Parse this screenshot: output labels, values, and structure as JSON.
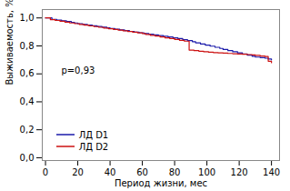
{
  "chart_data": {
    "type": "step",
    "xlabel": "Период жизни, мес",
    "ylabel": "Выживаемость, %",
    "annotations": [
      "p=0,93"
    ],
    "legend": "lower left",
    "grid": false,
    "xlim": [
      -2,
      145
    ],
    "ylim": [
      -0.02,
      1.06
    ],
    "xticks": [
      0,
      20,
      40,
      60,
      80,
      100,
      120,
      140
    ],
    "yticks": [
      {
        "value": 0.0,
        "label": "0,0"
      },
      {
        "value": 0.2,
        "label": "0,2"
      },
      {
        "value": 0.4,
        "label": "0,4"
      },
      {
        "value": 0.6,
        "label": "0,6"
      },
      {
        "value": 0.8,
        "label": "0,8"
      },
      {
        "value": 1.0,
        "label": "1,0"
      }
    ],
    "series": [
      {
        "name": "ЛД D1",
        "color": "#1a1aaa",
        "x": [
          0,
          4,
          7,
          10,
          13,
          16,
          18,
          20,
          23,
          26,
          29,
          32,
          35,
          38,
          40,
          43,
          46,
          49,
          52,
          55,
          58,
          61,
          64,
          67,
          70,
          73,
          76,
          79,
          82,
          85,
          88,
          91,
          93,
          96,
          99,
          102,
          105,
          108,
          110,
          113,
          116,
          119,
          122,
          125,
          128,
          130,
          133,
          136,
          138,
          140
        ],
        "values": [
          1.0,
          0.99,
          0.985,
          0.979,
          0.974,
          0.969,
          0.964,
          0.959,
          0.954,
          0.949,
          0.944,
          0.939,
          0.934,
          0.929,
          0.924,
          0.919,
          0.914,
          0.909,
          0.904,
          0.899,
          0.894,
          0.889,
          0.884,
          0.879,
          0.874,
          0.869,
          0.864,
          0.858,
          0.853,
          0.845,
          0.838,
          0.83,
          0.822,
          0.814,
          0.806,
          0.798,
          0.79,
          0.782,
          0.774,
          0.766,
          0.758,
          0.75,
          0.742,
          0.734,
          0.726,
          0.72,
          0.716,
          0.712,
          0.706,
          0.7
        ]
      },
      {
        "name": "ЛД D2",
        "color": "#cc1111",
        "x": [
          0,
          3,
          6,
          9,
          12,
          15,
          18,
          21,
          24,
          27,
          30,
          33,
          36,
          39,
          42,
          45,
          48,
          51,
          54,
          57,
          60,
          62,
          65,
          68,
          71,
          74,
          77,
          80,
          83,
          86,
          89,
          92,
          95,
          98,
          101,
          104,
          107,
          110,
          113,
          116,
          119,
          122,
          125,
          128,
          130,
          133,
          136,
          138,
          140
        ],
        "values": [
          1.0,
          0.988,
          0.982,
          0.976,
          0.97,
          0.964,
          0.959,
          0.953,
          0.948,
          0.943,
          0.938,
          0.933,
          0.928,
          0.923,
          0.918,
          0.913,
          0.908,
          0.903,
          0.898,
          0.893,
          0.888,
          0.882,
          0.876,
          0.87,
          0.864,
          0.858,
          0.852,
          0.846,
          0.84,
          0.834,
          0.77,
          0.766,
          0.762,
          0.758,
          0.755,
          0.752,
          0.75,
          0.748,
          0.746,
          0.744,
          0.742,
          0.74,
          0.738,
          0.736,
          0.732,
          0.728,
          0.724,
          0.69,
          0.68
        ]
      }
    ]
  }
}
